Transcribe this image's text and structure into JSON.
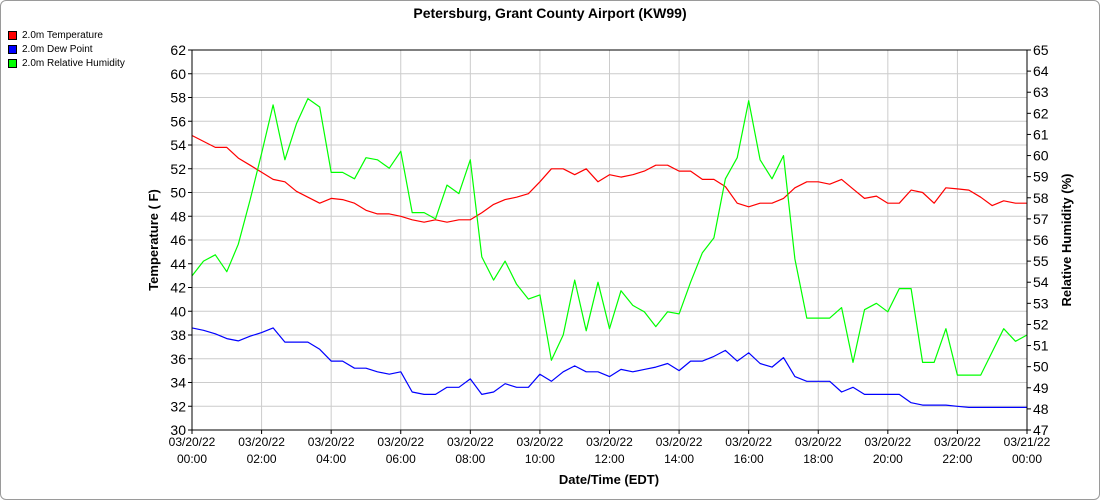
{
  "chart_data": {
    "type": "line",
    "title": "Petersburg, Grant County Airport (KW99)",
    "xlabel": "Date/Time (EDT)",
    "ylabel": "Temperature ( F)",
    "y2label": "Relative Humidity (%)",
    "ylim": [
      30,
      62
    ],
    "y2lim": [
      47,
      65
    ],
    "xlim": [
      0,
      24
    ],
    "grid": true,
    "legend_position": "top-left",
    "x_ticks": [
      {
        "hour": 0,
        "date": "03/20/22",
        "time": "00:00"
      },
      {
        "hour": 2,
        "date": "03/20/22",
        "time": "02:00"
      },
      {
        "hour": 4,
        "date": "03/20/22",
        "time": "04:00"
      },
      {
        "hour": 6,
        "date": "03/20/22",
        "time": "06:00"
      },
      {
        "hour": 8,
        "date": "03/20/22",
        "time": "08:00"
      },
      {
        "hour": 10,
        "date": "03/20/22",
        "time": "10:00"
      },
      {
        "hour": 12,
        "date": "03/20/22",
        "time": "12:00"
      },
      {
        "hour": 14,
        "date": "03/20/22",
        "time": "14:00"
      },
      {
        "hour": 16,
        "date": "03/20/22",
        "time": "16:00"
      },
      {
        "hour": 18,
        "date": "03/20/22",
        "time": "18:00"
      },
      {
        "hour": 20,
        "date": "03/20/22",
        "time": "20:00"
      },
      {
        "hour": 22,
        "date": "03/20/22",
        "time": "22:00"
      },
      {
        "hour": 24,
        "date": "03/21/22",
        "time": "00:00"
      }
    ],
    "y_ticks": [
      30,
      32,
      34,
      36,
      38,
      40,
      42,
      44,
      46,
      48,
      50,
      52,
      54,
      56,
      58,
      60,
      62
    ],
    "y2_ticks": [
      47,
      48,
      49,
      50,
      51,
      52,
      53,
      54,
      55,
      56,
      57,
      58,
      59,
      60,
      61,
      62,
      63,
      64,
      65
    ],
    "series": [
      {
        "name": "2.0m Temperature",
        "color": "#ff0000",
        "axis": "left",
        "x": [
          0,
          0.33,
          0.67,
          1,
          1.33,
          1.67,
          2,
          2.33,
          2.67,
          3,
          3.33,
          3.67,
          4,
          4.33,
          4.67,
          5,
          5.33,
          5.67,
          6,
          6.33,
          6.67,
          7,
          7.33,
          7.67,
          8,
          8.33,
          8.67,
          9,
          9.33,
          9.67,
          10,
          10.33,
          10.67,
          11,
          11.33,
          11.67,
          12,
          12.33,
          12.67,
          13,
          13.33,
          13.67,
          14,
          14.33,
          14.67,
          15,
          15.33,
          15.67,
          16,
          16.33,
          16.67,
          17,
          17.33,
          17.67,
          18,
          18.33,
          18.67,
          19,
          19.33,
          19.67,
          20,
          20.33,
          20.67,
          21,
          21.33,
          21.67,
          22,
          22.33,
          22.67,
          23,
          23.33,
          23.67,
          24
        ],
        "y": [
          54.8,
          54.3,
          53.8,
          53.8,
          52.9,
          52.3,
          51.7,
          51.1,
          50.9,
          50.1,
          49.6,
          49.1,
          49.5,
          49.4,
          49.1,
          48.5,
          48.2,
          48.2,
          48.0,
          47.7,
          47.5,
          47.7,
          47.5,
          47.7,
          47.7,
          48.3,
          49.0,
          49.4,
          49.6,
          49.9,
          50.9,
          52.0,
          52.0,
          51.5,
          52.0,
          50.9,
          51.5,
          51.3,
          51.5,
          51.8,
          52.3,
          52.3,
          51.8,
          51.8,
          51.1,
          51.1,
          50.5,
          49.1,
          48.8,
          49.1,
          49.1,
          49.5,
          50.4,
          50.9,
          50.9,
          50.7,
          51.1,
          50.3,
          49.5,
          49.7,
          49.1,
          49.1,
          50.2,
          50.0,
          49.1,
          50.4,
          50.3,
          50.2,
          49.6,
          48.9,
          49.3,
          49.1,
          49.1
        ]
      },
      {
        "name": "2.0m Dew Point",
        "color": "#0000ff",
        "axis": "left",
        "x": [
          0,
          0.33,
          0.67,
          1,
          1.33,
          1.67,
          2,
          2.33,
          2.67,
          3,
          3.33,
          3.67,
          4,
          4.33,
          4.67,
          5,
          5.33,
          5.67,
          6,
          6.33,
          6.67,
          7,
          7.33,
          7.67,
          8,
          8.33,
          8.67,
          9,
          9.33,
          9.67,
          10,
          10.33,
          10.67,
          11,
          11.33,
          11.67,
          12,
          12.33,
          12.67,
          13,
          13.33,
          13.67,
          14,
          14.33,
          14.67,
          15,
          15.33,
          15.67,
          16,
          16.33,
          16.67,
          17,
          17.33,
          17.67,
          18,
          18.33,
          18.67,
          19,
          19.33,
          19.67,
          20,
          20.33,
          20.67,
          21,
          21.33,
          21.67,
          22,
          22.33,
          22.67,
          23,
          23.33,
          23.67,
          24
        ],
        "y": [
          38.6,
          38.4,
          38.1,
          37.7,
          37.5,
          37.9,
          38.2,
          38.6,
          37.4,
          37.4,
          37.4,
          36.8,
          35.8,
          35.8,
          35.2,
          35.2,
          34.9,
          34.7,
          34.9,
          33.2,
          33.0,
          33.0,
          33.6,
          33.6,
          34.3,
          33.0,
          33.2,
          33.9,
          33.6,
          33.6,
          34.7,
          34.1,
          34.9,
          35.4,
          34.9,
          34.9,
          34.5,
          35.1,
          34.9,
          35.1,
          35.3,
          35.6,
          35.0,
          35.8,
          35.8,
          36.2,
          36.7,
          35.8,
          36.5,
          35.6,
          35.3,
          36.1,
          34.5,
          34.1,
          34.1,
          34.1,
          33.2,
          33.6,
          33.0,
          33.0,
          33.0,
          33.0,
          32.3,
          32.1,
          32.1,
          32.1,
          32.0,
          31.9,
          31.9,
          31.9,
          31.9,
          31.9,
          31.9
        ]
      },
      {
        "name": "2.0m Relative Humidity",
        "color": "#00ff00",
        "axis": "right",
        "x": [
          0,
          0.33,
          0.67,
          1,
          1.33,
          1.67,
          2,
          2.33,
          2.67,
          3,
          3.33,
          3.67,
          4,
          4.33,
          4.67,
          5,
          5.33,
          5.67,
          6,
          6.33,
          6.67,
          7,
          7.33,
          7.67,
          8,
          8.33,
          8.67,
          9,
          9.33,
          9.67,
          10,
          10.33,
          10.67,
          11,
          11.33,
          11.67,
          12,
          12.33,
          12.67,
          13,
          13.33,
          13.67,
          14,
          14.33,
          14.67,
          15,
          15.33,
          15.67,
          16,
          16.33,
          16.67,
          17,
          17.33,
          17.67,
          18,
          18.33,
          18.67,
          19,
          19.33,
          19.67,
          20,
          20.33,
          20.67,
          21,
          21.33,
          21.67,
          22,
          22.33,
          22.67,
          23,
          23.33,
          23.67,
          24
        ],
        "y": [
          54.3,
          55.0,
          55.3,
          54.5,
          55.8,
          57.9,
          60.1,
          62.4,
          59.8,
          61.5,
          62.7,
          62.3,
          59.2,
          59.2,
          58.9,
          59.9,
          59.8,
          59.4,
          60.2,
          57.3,
          57.3,
          57.0,
          58.6,
          58.2,
          59.8,
          55.2,
          54.1,
          55.0,
          53.9,
          53.2,
          53.4,
          50.3,
          51.5,
          54.1,
          51.7,
          54.0,
          51.8,
          53.6,
          52.9,
          52.6,
          51.9,
          52.6,
          52.5,
          54.0,
          55.4,
          56.1,
          58.9,
          59.9,
          62.6,
          59.8,
          58.9,
          60.0,
          55.1,
          52.3,
          52.3,
          52.3,
          52.8,
          50.2,
          52.7,
          53.0,
          52.6,
          53.7,
          53.7,
          50.2,
          50.2,
          51.8,
          49.6,
          49.6,
          49.6,
          50.7,
          51.8,
          51.2,
          51.5
        ]
      }
    ]
  }
}
